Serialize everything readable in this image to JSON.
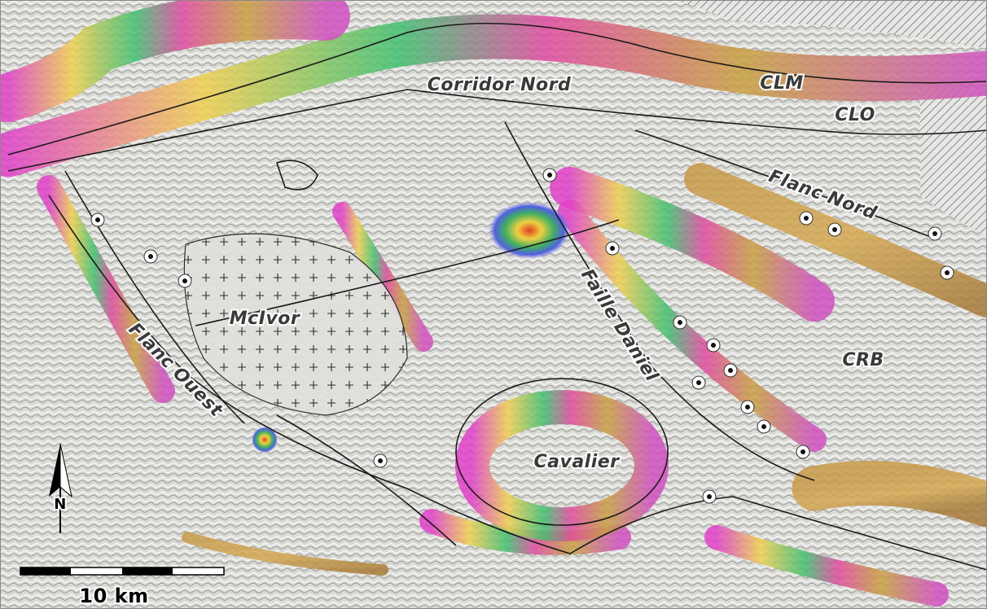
{
  "labels": [
    {
      "text": "Corridor Nord"
    },
    {
      "text": "CLM"
    },
    {
      "text": "CLO"
    },
    {
      "text": "Flanc Nord"
    },
    {
      "text": "Faille Daniel"
    },
    {
      "text": "McIvor"
    },
    {
      "text": "Flanc Ouest"
    },
    {
      "text": "CRB"
    },
    {
      "text": "Cavalier"
    }
  ],
  "scale_bar": {
    "label": "10 km"
  },
  "north_arrow": {
    "label": "N"
  }
}
